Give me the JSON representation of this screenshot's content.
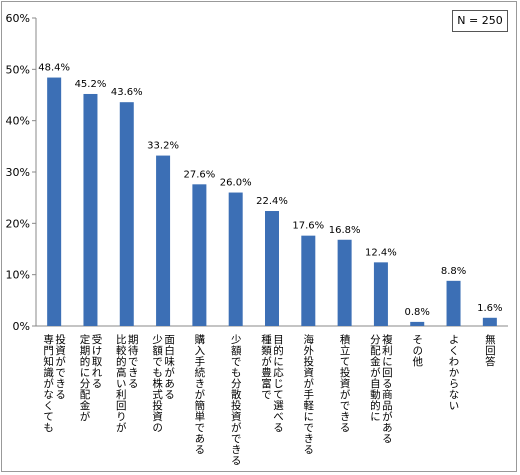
{
  "note": "N = 250",
  "chart_data": {
    "type": "bar",
    "categories": [
      "投資ができる\n専門知識がなくても",
      "受け取れる\n定期的に分配金が",
      "期待できる\n比較的高い利回りが",
      "面白味がある\n少額でも株式投資の",
      "購入手続きが簡単である",
      "少額でも分散投資ができる",
      "目的に応じて選べる\n種類が豊富で",
      "海外投資が手軽にできる",
      "積立て投資ができる",
      "複利に回る商品がある\n分配金が自動的に",
      "その他",
      "よくわからない",
      "無回答"
    ],
    "values": [
      48.4,
      45.2,
      43.6,
      33.2,
      27.6,
      26.0,
      22.4,
      17.6,
      16.8,
      12.4,
      0.8,
      8.8,
      1.6
    ],
    "value_labels": [
      "48.4%",
      "45.2%",
      "43.6%",
      "33.2%",
      "27.6%",
      "26.0%",
      "22.4%",
      "17.6%",
      "16.8%",
      "12.4%",
      "0.8%",
      "8.8%",
      "1.6%"
    ],
    "y_ticks": [
      "0%",
      "10%",
      "20%",
      "30%",
      "40%",
      "50%",
      "60%"
    ],
    "ylim": [
      0,
      60
    ],
    "grid": false,
    "bar_color": "#3c6fb5"
  }
}
